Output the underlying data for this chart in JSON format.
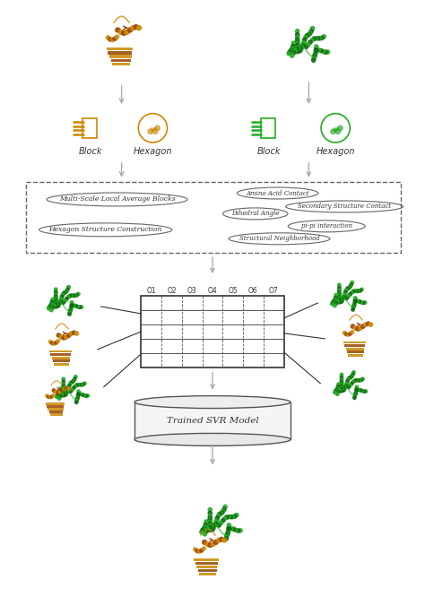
{
  "bg_color": "#ffffff",
  "arrow_color": "#aaaaaa",
  "orange_color": "#cc8800",
  "orange_dark": "#994400",
  "green_color": "#22aa22",
  "green_dark": "#116611",
  "feature_box_labels": [
    "Multi-Scale Local Average Blocks",
    "Hexagon Structure Construction"
  ],
  "feature_ellipse_labels": [
    "Amino Acid Contact",
    "Secondary Structure Contact",
    "Dihedral Angle",
    "pi-pi interaction",
    "Structural Neighborhood"
  ],
  "table_cols": [
    "O1",
    "O2",
    "O3",
    "O4",
    "O5",
    "O6",
    "O7"
  ],
  "svr_label": "Trained SVR Model",
  "block_label": "Block",
  "hexagon_label": "Hexagon",
  "text_color": "#333333",
  "line_color": "#555555",
  "table_line_color": "#444444"
}
